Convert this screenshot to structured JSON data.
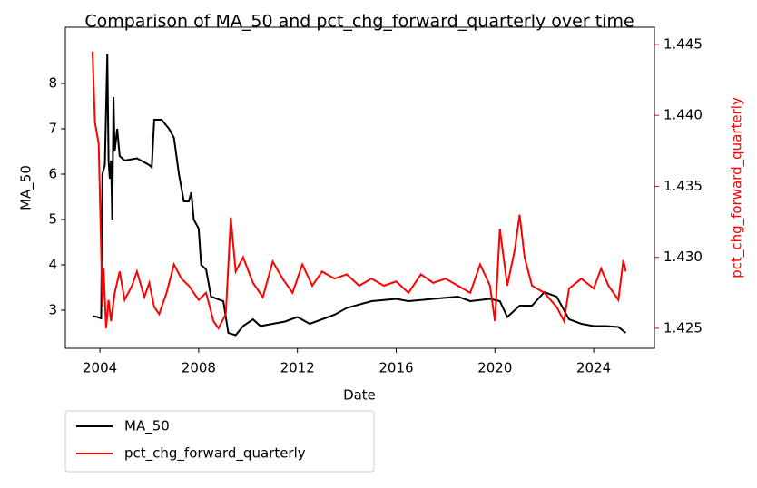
{
  "chart_data": {
    "type": "line",
    "title": "Comparison of MA_50 and pct_chg_forward_quarterly over time",
    "x_label": "Date",
    "y_label": "MA_50",
    "y2_label": "pct_chg_forward_quarterly",
    "xlim": [
      2002.6,
      2026.46
    ],
    "xticks": [
      2004,
      2008,
      2012,
      2016,
      2020,
      2024
    ],
    "ylim": [
      2.16,
      9.24
    ],
    "yticks": [
      3,
      4,
      5,
      6,
      7,
      8
    ],
    "y2lim": [
      1.42359,
      1.44621
    ],
    "y2ticks": [
      1.425,
      {
        "value": 1.43,
        "label": "1.430"
      },
      1.435,
      {
        "value": 1.44,
        "label": "1.440"
      },
      1.445
    ],
    "legend": "below",
    "series": [
      {
        "name": "MA_50",
        "color": "#000000",
        "x": [
          2003.7,
          2003.9,
          2004.0,
          2004.05,
          2004.1,
          2004.2,
          2004.3,
          2004.35,
          2004.4,
          2004.45,
          2004.5,
          2004.55,
          2004.6,
          2004.7,
          2004.8,
          2005.0,
          2005.5,
          2006.0,
          2006.1,
          2006.2,
          2006.5,
          2006.8,
          2007.0,
          2007.2,
          2007.4,
          2007.6,
          2007.7,
          2007.8,
          2008.0,
          2008.1,
          2008.3,
          2008.5,
          2009.0,
          2009.2,
          2009.5,
          2009.8,
          2010.2,
          2010.5,
          2011.0,
          2011.5,
          2012.0,
          2012.5,
          2013.0,
          2013.5,
          2014.0,
          2015.0,
          2016.0,
          2016.5,
          2017.5,
          2018.5,
          2019.0,
          2019.8,
          2020.2,
          2020.5,
          2021.0,
          2021.5,
          2022.0,
          2022.5,
          2023.0,
          2023.5,
          2024.0,
          2024.5,
          2025.0,
          2025.3
        ],
        "values": [
          2.87,
          2.85,
          2.83,
          2.82,
          6.0,
          6.2,
          8.65,
          6.3,
          5.9,
          6.3,
          5.0,
          7.7,
          6.5,
          7.0,
          6.4,
          6.3,
          6.35,
          6.2,
          6.15,
          7.2,
          7.2,
          7.0,
          6.8,
          6.0,
          5.4,
          5.4,
          5.6,
          5.0,
          4.8,
          4.0,
          3.9,
          3.3,
          3.2,
          2.5,
          2.45,
          2.65,
          2.8,
          2.65,
          2.7,
          2.75,
          2.85,
          2.7,
          2.8,
          2.9,
          3.05,
          3.2,
          3.25,
          3.2,
          3.25,
          3.3,
          3.2,
          3.25,
          3.2,
          2.85,
          3.1,
          3.1,
          3.4,
          3.3,
          2.8,
          2.7,
          2.65,
          2.65,
          2.63,
          2.5
        ]
      },
      {
        "name": "pct_chg_forward_quarterly",
        "color": "#ff0000",
        "axis": "y2",
        "x": [
          2003.7,
          2003.8,
          2003.95,
          2004.05,
          2004.1,
          2004.15,
          2004.25,
          2004.35,
          2004.45,
          2004.6,
          2004.8,
          2005.0,
          2005.3,
          2005.5,
          2005.8,
          2006.0,
          2006.2,
          2006.4,
          2006.7,
          2007.0,
          2007.3,
          2007.6,
          2008.0,
          2008.3,
          2008.6,
          2008.8,
          2009.1,
          2009.3,
          2009.5,
          2009.8,
          2010.2,
          2010.6,
          2011.0,
          2011.4,
          2011.8,
          2012.2,
          2012.6,
          2013.0,
          2013.5,
          2014.0,
          2014.5,
          2015.0,
          2015.5,
          2016.0,
          2016.5,
          2017.0,
          2017.5,
          2018.0,
          2018.5,
          2019.0,
          2019.4,
          2019.8,
          2020.0,
          2020.2,
          2020.5,
          2020.8,
          2021.0,
          2021.2,
          2021.5,
          2022.0,
          2022.5,
          2022.8,
          2023.0,
          2023.5,
          2024.0,
          2024.3,
          2024.6,
          2025.0,
          2025.2,
          2025.3
        ],
        "values": [
          1.4445,
          1.4395,
          1.438,
          1.4305,
          1.4265,
          1.4292,
          1.425,
          1.427,
          1.4255,
          1.4275,
          1.429,
          1.427,
          1.428,
          1.429,
          1.4272,
          1.4282,
          1.4265,
          1.426,
          1.4275,
          1.4295,
          1.4285,
          1.428,
          1.427,
          1.4275,
          1.4255,
          1.425,
          1.426,
          1.4328,
          1.429,
          1.43,
          1.4282,
          1.4272,
          1.4297,
          1.4285,
          1.4275,
          1.4295,
          1.428,
          1.429,
          1.4285,
          1.4288,
          1.428,
          1.4285,
          1.428,
          1.4283,
          1.4275,
          1.4288,
          1.4282,
          1.4285,
          1.428,
          1.4275,
          1.4295,
          1.428,
          1.4255,
          1.432,
          1.428,
          1.4305,
          1.433,
          1.43,
          1.428,
          1.4275,
          1.4265,
          1.4255,
          1.4278,
          1.4285,
          1.4278,
          1.4292,
          1.428,
          1.427,
          1.4298,
          1.429
        ]
      }
    ]
  }
}
